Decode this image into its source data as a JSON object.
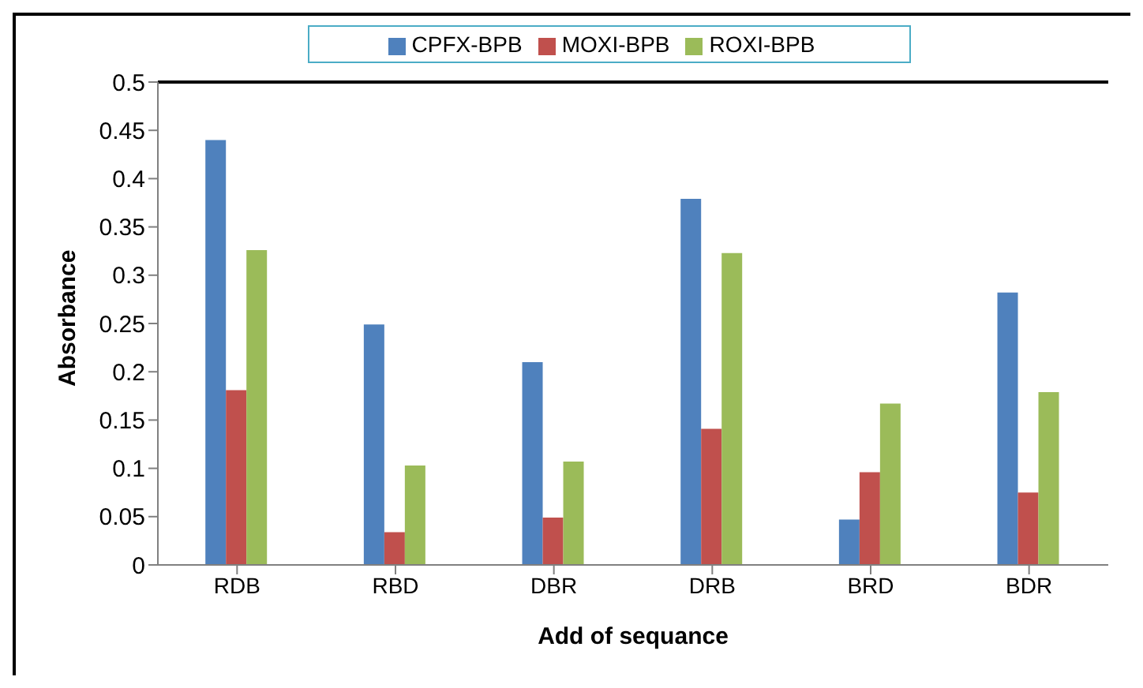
{
  "chart_data": {
    "type": "bar",
    "xlabel": "Add of sequance",
    "ylabel": "Absorbance",
    "categories": [
      "RDB",
      "RBD",
      "DBR",
      "DRB",
      "BRD",
      "BDR"
    ],
    "series": [
      {
        "name": "CPFX-BPB",
        "color": "#4f81bd",
        "values": [
          0.44,
          0.249,
          0.21,
          0.379,
          0.047,
          0.282
        ]
      },
      {
        "name": "MOXI-BPB",
        "color": "#c0504d",
        "values": [
          0.181,
          0.034,
          0.049,
          0.141,
          0.096,
          0.075
        ]
      },
      {
        "name": "ROXI-BPB",
        "color": "#9bbb59",
        "values": [
          0.326,
          0.103,
          0.107,
          0.323,
          0.167,
          0.179
        ]
      }
    ],
    "ylim": [
      0,
      0.5
    ],
    "yticks": [
      0,
      0.05,
      0.1,
      0.15,
      0.2,
      0.25,
      0.3,
      0.35,
      0.4,
      0.45,
      0.5
    ],
    "grid": false,
    "legend": "top"
  }
}
